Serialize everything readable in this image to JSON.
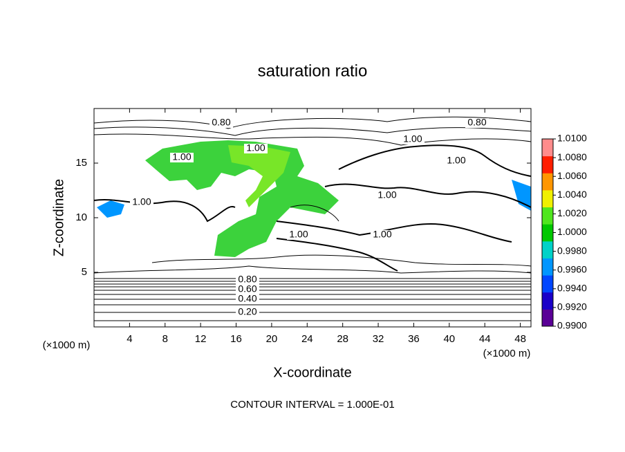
{
  "chart_data": {
    "type": "contour",
    "title": "saturation ratio",
    "x_label": "X-coordinate",
    "y_label": "Z-coordinate",
    "x_unit": "(×1000 m)",
    "y_unit": "(×1000 m)",
    "footer": "CONTOUR INTERVAL = 1.000E-01",
    "xlim": [
      0,
      49.2
    ],
    "ylim": [
      0,
      20
    ],
    "xticks": [
      4,
      8,
      12,
      16,
      20,
      24,
      28,
      32,
      36,
      40,
      44,
      48
    ],
    "yticks": [
      5,
      10,
      15
    ],
    "contour_labels": [
      "0.80",
      "0.80",
      "1.00",
      "1.00",
      "1.00",
      "1.00",
      "1.00",
      "1.00",
      "1.00",
      "1.00",
      "0.80",
      "0.60",
      "0.40",
      "0.20"
    ],
    "colorbar": {
      "lim": [
        0.99,
        1.01
      ],
      "colors": [
        "#5a0096",
        "#1a00c8",
        "#0046ff",
        "#0096ff",
        "#00d2c8",
        "#00c800",
        "#50e61e",
        "#f0f000",
        "#ff9600",
        "#ff1e00",
        "#ff8c8c"
      ],
      "ticks": [
        {
          "value": 0.99,
          "label": "0.9900"
        },
        {
          "value": 0.992,
          "label": "0.9920"
        },
        {
          "value": 0.994,
          "label": "0.9940"
        },
        {
          "value": 0.996,
          "label": "0.9960"
        },
        {
          "value": 0.998,
          "label": "0.9980"
        },
        {
          "value": 1.0,
          "label": "1.0000"
        },
        {
          "value": 1.002,
          "label": "1.0020"
        },
        {
          "value": 1.004,
          "label": "1.0040"
        },
        {
          "value": 1.006,
          "label": "1.0060"
        },
        {
          "value": 1.008,
          "label": "1.0080"
        },
        {
          "value": 1.01,
          "label": "1.0100"
        }
      ]
    }
  }
}
